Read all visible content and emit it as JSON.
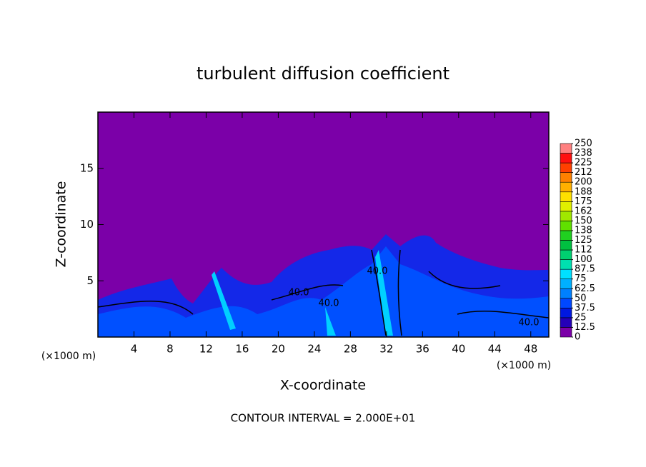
{
  "chart_data": {
    "type": "contour",
    "title": "turbulent diffusion coefficient",
    "xlabel": "X-coordinate",
    "ylabel": "Z-coordinate",
    "yunit": "(×1000 m)",
    "xunit": "(×1000 m)",
    "footer": "CONTOUR INTERVAL = 2.000E+01",
    "xlim": [
      0,
      50
    ],
    "xticks": [
      4,
      8,
      12,
      16,
      20,
      24,
      28,
      32,
      36,
      40,
      44,
      48
    ],
    "ylim": [
      0,
      20
    ],
    "yticks": [
      5,
      10,
      15
    ],
    "contour_labels": [
      "40.0",
      "40.0",
      "40.0",
      "40.0"
    ],
    "colorbar": {
      "levels": [
        0,
        12.5,
        25,
        37.5,
        50,
        62.5,
        75,
        87.5,
        100,
        {
          "value": 112.5,
          "label": "112"
        },
        125,
        {
          "value": 137.5,
          "label": "138"
        },
        150,
        {
          "value": 162.5,
          "label": "162"
        },
        175,
        {
          "value": 187.5,
          "label": "188"
        },
        200,
        {
          "value": 212.5,
          "label": "212"
        },
        225,
        {
          "value": 237.5,
          "label": "238"
        },
        250
      ],
      "colors": [
        "#7b00a8",
        "#2400b8",
        "#0018e0",
        "#0048ff",
        "#0080ff",
        "#00b0ff",
        "#00e0ff",
        "#00e0b0",
        "#00d070",
        "#00c040",
        "#20d020",
        "#60e000",
        "#a0e800",
        "#e0f000",
        "#ffe000",
        "#ffb000",
        "#ff8000",
        "#ff4000",
        "#ff1010",
        "#ff8080"
      ]
    }
  }
}
